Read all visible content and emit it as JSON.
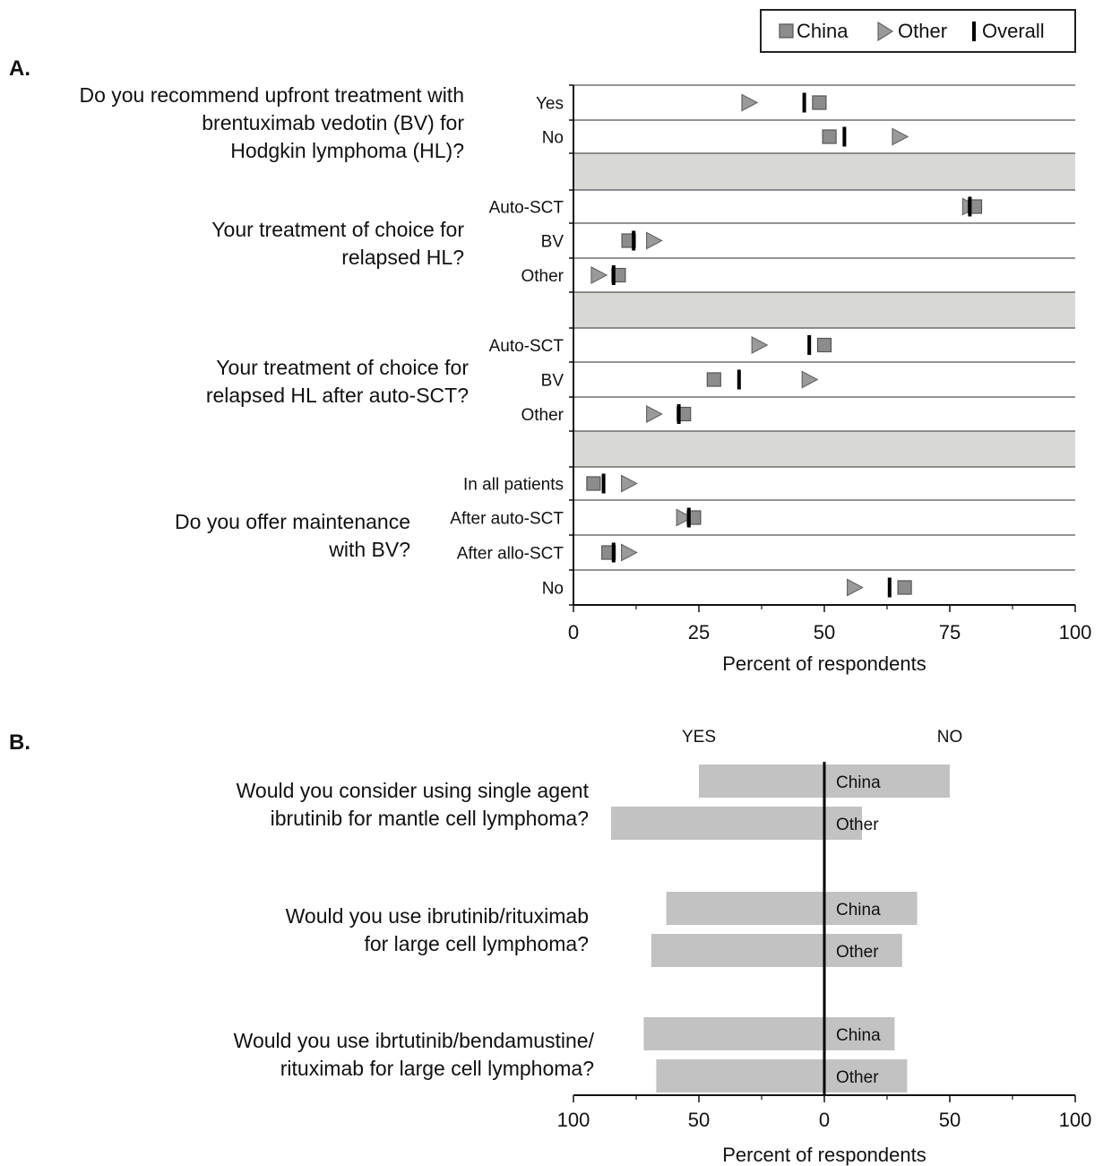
{
  "panel_a_label": "A.",
  "panel_b_label": "B.",
  "legend": {
    "china": "China",
    "other": "Other",
    "overall": "Overall"
  },
  "colors": {
    "china_fill": "#8c8c8c",
    "other_fill": "#9a9a9a",
    "overall": "#000000",
    "band": "#d8d8d4",
    "bar": "#c2c2c2"
  },
  "chart_data": [
    {
      "type": "scatter",
      "panel": "A",
      "xlabel": "Percent of respondents",
      "xlim": [
        0,
        100
      ],
      "xticks": [
        "0",
        "25",
        "50",
        "75",
        "100"
      ],
      "series_names": [
        "China",
        "Other",
        "Overall"
      ],
      "groups": [
        {
          "question_lines": [
            "Do you recommend upfront treatment with",
            "brentuximab vedotin (BV) for",
            "Hodgkin lymphoma (HL)?"
          ],
          "rows": [
            {
              "label": "Yes",
              "china": 49,
              "other": 35,
              "overall": 46
            },
            {
              "label": "No",
              "china": 51,
              "other": 65,
              "overall": 54
            }
          ]
        },
        {
          "question_lines": [
            "Your treatment of choice for",
            "relapsed HL?"
          ],
          "rows": [
            {
              "label": "Auto-SCT",
              "china": 80,
              "other": 79,
              "overall": 79
            },
            {
              "label": "BV",
              "china": 11,
              "other": 16,
              "overall": 12
            },
            {
              "label": "Other",
              "china": 9,
              "other": 5,
              "overall": 8
            }
          ]
        },
        {
          "question_lines": [
            "Your treatment of choice for",
            "relapsed HL after auto-SCT?"
          ],
          "rows": [
            {
              "label": "Auto-SCT",
              "china": 50,
              "other": 37,
              "overall": 47
            },
            {
              "label": "BV",
              "china": 28,
              "other": 47,
              "overall": 33
            },
            {
              "label": "Other",
              "china": 22,
              "other": 16,
              "overall": 21
            }
          ]
        },
        {
          "question_lines": [
            "Do you offer maintenance",
            "with BV?"
          ],
          "rows": [
            {
              "label": "In all patients",
              "china": 4,
              "other": 11,
              "overall": 6
            },
            {
              "label": "After auto-SCT",
              "china": 24,
              "other": 22,
              "overall": 23
            },
            {
              "label": "After allo-SCT",
              "china": 7,
              "other": 11,
              "overall": 8
            },
            {
              "label": "No",
              "china": 66,
              "other": 56,
              "overall": 63
            }
          ]
        }
      ]
    },
    {
      "type": "bar",
      "panel": "B",
      "xlabel": "Percent of respondents",
      "left_label": "YES",
      "right_label": "NO",
      "xlim_yes": [
        100,
        0
      ],
      "xlim_no": [
        0,
        100
      ],
      "xticks": [
        "100",
        "50",
        "0",
        "50",
        "100"
      ],
      "questions": [
        {
          "question_lines": [
            "Would you consider using single agent",
            "ibrutinib for mantle cell lymphoma?"
          ],
          "bars": [
            {
              "label": "China",
              "yes": 50,
              "no": 50
            },
            {
              "label": "Other",
              "yes": 85,
              "no": 15
            }
          ]
        },
        {
          "question_lines": [
            "Would you use ibrutinib/rituximab",
            "for large cell lymphoma?"
          ],
          "bars": [
            {
              "label": "China",
              "yes": 63,
              "no": 37
            },
            {
              "label": "Other",
              "yes": 69,
              "no": 31
            }
          ]
        },
        {
          "question_lines": [
            "Would you use ibrtutinib/bendamustine/",
            "rituximab for large cell lymphoma?"
          ],
          "bars": [
            {
              "label": "China",
              "yes": 72,
              "no": 28
            },
            {
              "label": "Other",
              "yes": 67,
              "no": 33
            }
          ]
        }
      ]
    }
  ]
}
